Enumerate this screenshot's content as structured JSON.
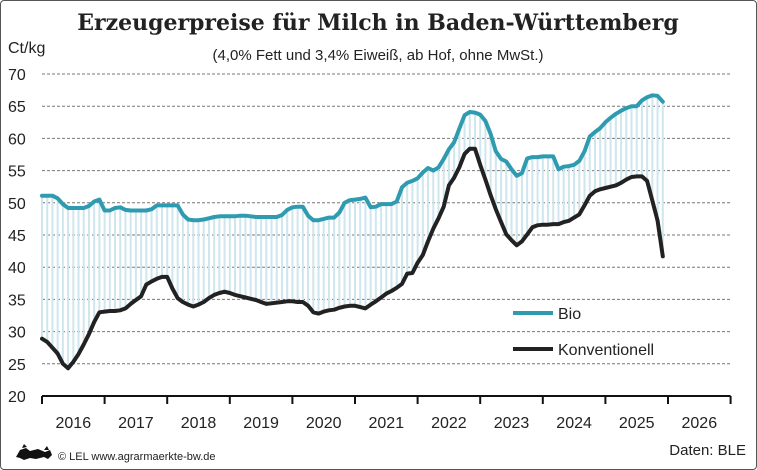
{
  "chart_data": {
    "type": "line",
    "title": "Erzeugerpreise für Milch in Baden-Württemberg",
    "subtitle": "(4,0% Fett und 3,4% Eiweiß, ab Hof, ohne MwSt.)",
    "ylabel": "Ct/kg",
    "xlabel": "",
    "ylim": [
      20,
      70
    ],
    "yticks": [
      "20",
      "25",
      "30",
      "35",
      "40",
      "45",
      "50",
      "55",
      "60",
      "65",
      "70"
    ],
    "xticks": [
      "2016",
      "2017",
      "2018",
      "2019",
      "2020",
      "2021",
      "2022",
      "2023",
      "2024",
      "2025",
      "2026"
    ],
    "x_frequency": "monthly, Jan 2016 – Dec 2025",
    "grid": "horizontal dashed",
    "legend": "right-center",
    "fill_between": "light blue vertical hatching between series",
    "series": [
      {
        "name": "Bio",
        "color": "#2e9bb0",
        "values_by_year": {
          "2016": [
            51.1,
            51.1,
            51.1,
            50.7,
            49.8,
            49.2,
            49.2,
            49.2,
            49.2,
            49.5,
            50.2,
            50.5
          ],
          "2017": [
            48.8,
            48.8,
            49.2,
            49.3,
            48.9,
            48.8,
            48.8,
            48.8,
            48.8,
            49.0,
            49.6,
            49.6
          ],
          "2018": [
            49.6,
            49.6,
            49.6,
            48.2,
            47.4,
            47.3,
            47.3,
            47.4,
            47.6,
            47.8,
            47.9,
            47.9
          ],
          "2019": [
            47.9,
            47.9,
            48.0,
            48.0,
            47.9,
            47.8,
            47.8,
            47.8,
            47.8,
            47.8,
            48.1,
            48.9
          ],
          "2020": [
            49.3,
            49.4,
            49.4,
            48.0,
            47.3,
            47.3,
            47.5,
            47.7,
            47.7,
            48.5,
            50.0,
            50.4
          ],
          "2021": [
            50.5,
            50.6,
            50.8,
            49.3,
            49.4,
            49.8,
            49.8,
            49.8,
            50.2,
            52.4,
            53.1,
            53.4
          ],
          "2022": [
            53.8,
            54.7,
            55.4,
            55.0,
            55.5,
            56.8,
            58.3,
            59.4,
            61.5,
            63.6,
            64.1,
            64.0
          ],
          "2023": [
            63.7,
            62.7,
            60.7,
            58.0,
            56.8,
            56.4,
            55.2,
            54.2,
            54.6,
            56.9,
            57.1,
            57.1
          ],
          "2024": [
            57.2,
            57.2,
            57.2,
            55.2,
            55.6,
            55.7,
            55.9,
            56.5,
            58.0,
            60.3,
            61.0,
            61.6
          ],
          "2025": [
            62.5,
            63.2,
            63.8,
            64.3,
            64.7,
            65.0,
            65.0,
            65.9,
            66.4,
            66.7,
            66.6,
            65.7
          ]
        }
      },
      {
        "name": "Konventionell",
        "color": "#222222",
        "values_by_year": {
          "2016": [
            28.9,
            28.4,
            27.5,
            26.6,
            25.0,
            24.3,
            25.3,
            26.5,
            28.0,
            29.6,
            31.5,
            33.0
          ],
          "2017": [
            33.1,
            33.2,
            33.2,
            33.3,
            33.6,
            34.3,
            34.9,
            35.5,
            37.3,
            37.8,
            38.2,
            38.5
          ],
          "2018": [
            38.5,
            36.7,
            35.2,
            34.6,
            34.2,
            33.9,
            34.2,
            34.6,
            35.2,
            35.7,
            36.0,
            36.2
          ],
          "2019": [
            36.0,
            35.7,
            35.5,
            35.3,
            35.1,
            34.9,
            34.6,
            34.3,
            34.4,
            34.5,
            34.6,
            34.7
          ],
          "2020": [
            34.7,
            34.6,
            34.6,
            34.0,
            33.0,
            32.8,
            33.1,
            33.3,
            33.4,
            33.7,
            33.9,
            34.0
          ],
          "2021": [
            34.0,
            33.8,
            33.6,
            34.2,
            34.7,
            35.3,
            35.9,
            36.3,
            36.8,
            37.4,
            39.0,
            39.1
          ],
          "2022": [
            40.7,
            41.9,
            44.0,
            46.0,
            47.6,
            49.4,
            52.7,
            53.9,
            55.5,
            57.6,
            58.4,
            58.4
          ],
          "2023": [
            55.9,
            53.6,
            51.2,
            49.0,
            47.0,
            45.1,
            44.2,
            43.4,
            44.0,
            45.1,
            46.2,
            46.5
          ],
          "2024": [
            46.6,
            46.6,
            46.7,
            46.7,
            47.0,
            47.2,
            47.7,
            48.2,
            49.6,
            51.1,
            51.8,
            52.1
          ],
          "2025": [
            52.3,
            52.5,
            52.7,
            53.1,
            53.6,
            54.0,
            54.1,
            54.1,
            53.4,
            50.3,
            47.2,
            41.7
          ]
        }
      }
    ],
    "hatch_color": "#cfe6ee"
  },
  "footer": {
    "copyright": "© LEL www.agrarmaerkte-bw.de",
    "source": "Daten: BLE",
    "logo": "lion-logo"
  }
}
